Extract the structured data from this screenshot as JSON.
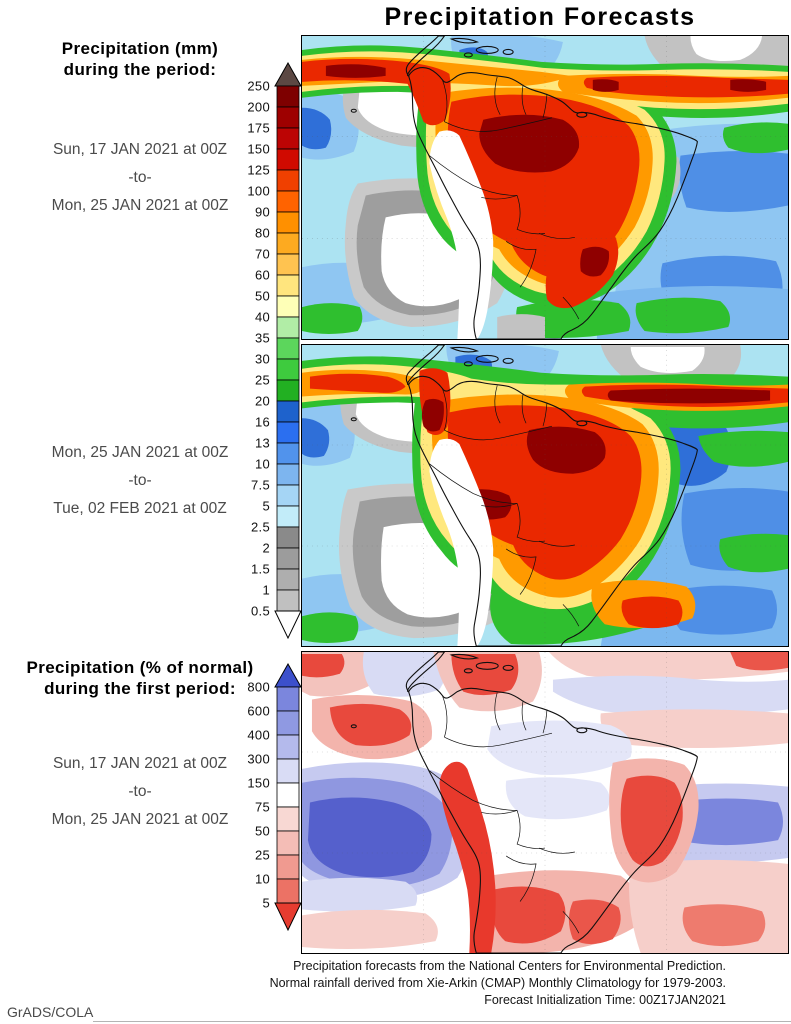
{
  "title": "Precipitation Forecasts",
  "credit": "GrADS/COLA",
  "left_column": {
    "block1": {
      "heading_line1": "Precipitation (mm)",
      "heading_line2": "during the period:",
      "date_from": "Sun, 17 JAN 2021 at 00Z",
      "separator": "-to-",
      "date_to": "Mon, 25 JAN 2021 at 00Z"
    },
    "block2": {
      "date_from": "Mon, 25 JAN 2021 at 00Z",
      "separator": "-to-",
      "date_to": "Tue, 02 FEB 2021 at 00Z"
    },
    "block3": {
      "heading_line1": "Precipitation (% of normal)",
      "heading_line2": "during the first period:",
      "date_from": "Sun, 17 JAN 2021 at 00Z",
      "separator": "-to-",
      "date_to": "Mon, 25 JAN 2021 at 00Z"
    }
  },
  "colorbar_mm": {
    "ticks": [
      "250",
      "200",
      "175",
      "150",
      "125",
      "100",
      "90",
      "80",
      "70",
      "60",
      "50",
      "40",
      "35",
      "30",
      "25",
      "20",
      "16",
      "13",
      "10",
      "7.5",
      "5",
      "2.5",
      "2",
      "1.5",
      "1",
      "0.5"
    ],
    "segment_colors": [
      "#7e0000",
      "#9e0000",
      "#bc0404",
      "#d00a00",
      "#f04000",
      "#ff6300",
      "#ff9000",
      "#fdaa20",
      "#ffc350",
      "#ffe57e",
      "#feffb7",
      "#b1eda6",
      "#5cd65c",
      "#3ecb3e",
      "#22b022",
      "#1e62cc",
      "#2b6ff0",
      "#5193ec",
      "#7db5ef",
      "#a5d5f5",
      "#c2ecf9",
      "#8a8a8a",
      "#9c9c9c",
      "#aeaeae",
      "#c0c0c0"
    ],
    "arrow_top_color": "#5c4843",
    "arrow_bottom_color": "#ffffff"
  },
  "colorbar_pct": {
    "ticks": [
      "800",
      "600",
      "400",
      "300",
      "150",
      "75",
      "50",
      "25",
      "10",
      "5"
    ],
    "segment_colors": [
      "#7b86dd",
      "#8f99e2",
      "#b4baec",
      "#d9dcf5",
      "#ffffff",
      "#f8d8d3",
      "#f4bdb6",
      "#f09a90",
      "#ec7265"
    ],
    "arrow_top_color": "#3c50cc",
    "arrow_bottom_color": "#e63c30"
  },
  "footer": {
    "line1": "Precipitation forecasts from the National Centers for Environmental Prediction.",
    "line2": "Normal rainfall derived from Xie-Arkin (CMAP) Monthly Climatology for 1979-2003.",
    "line3": "Forecast Initialization Time: 00Z17JAN2021"
  }
}
